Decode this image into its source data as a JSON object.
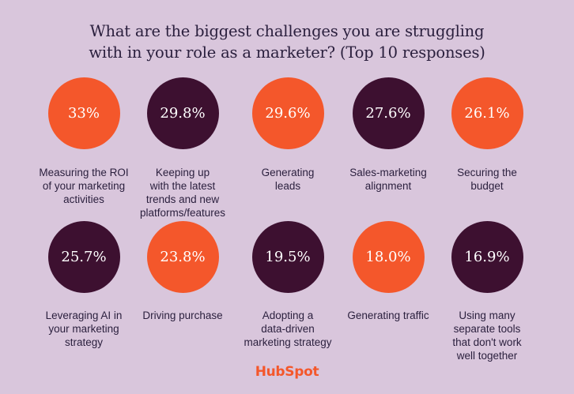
{
  "title": "What are the biggest challenges you are struggling\nwith in your role as a marketer? (Top 10 responses)",
  "logo_text": "HubSpot",
  "colors": {
    "background": "#d9c6dc",
    "orange": "#f4572b",
    "plum": "#3d1030",
    "text": "#2a1f3d"
  },
  "chart_data": {
    "type": "table",
    "title": "What are the biggest challenges you are struggling with in your role as a marketer? (Top 10 responses)",
    "items": [
      {
        "label": "Measuring the ROI\nof your marketing\nactivities",
        "value": "33%",
        "color": "orange"
      },
      {
        "label": "Keeping up\nwith the latest\ntrends and new\nplatforms/features",
        "value": "29.8%",
        "color": "plum"
      },
      {
        "label": "Generating\nleads",
        "value": "29.6%",
        "color": "orange"
      },
      {
        "label": "Sales-marketing\nalignment",
        "value": "27.6%",
        "color": "plum"
      },
      {
        "label": "Securing the\nbudget",
        "value": "26.1%",
        "color": "orange"
      },
      {
        "label": "Leveraging AI in\nyour marketing\nstrategy",
        "value": "25.7%",
        "color": "plum"
      },
      {
        "label": "Driving purchase",
        "value": "23.8%",
        "color": "orange"
      },
      {
        "label": "Adopting a\ndata-driven\nmarketing strategy",
        "value": "19.5%",
        "color": "plum"
      },
      {
        "label": "Generating traffic",
        "value": "18.0%",
        "color": "orange"
      },
      {
        "label": "Using many\nseparate tools\nthat don't work\nwell together",
        "value": "16.9%",
        "color": "plum"
      }
    ]
  }
}
